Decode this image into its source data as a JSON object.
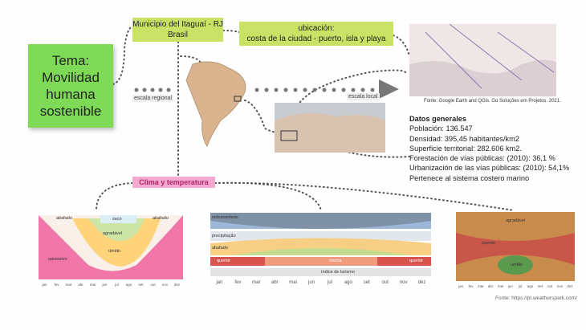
{
  "theme_note": "Tema: Movilidad humana sostenible",
  "location_label": "Municipio del Itaguaí - RJ Brasil",
  "ubicacion": {
    "title": "ubicación:",
    "text": "costa de la ciudad - puerto, isla y playa"
  },
  "scale_regional": "escala regional",
  "scale_local": "escala local",
  "map_source": "Fonte: Google Earth and QGis. Go Soluções em Projetos. 2021.",
  "general_data": {
    "title": "Datos generales",
    "items": [
      "Población: 136.547",
      "Densidad: 395,45 habitantes/km2",
      "Superficie territorial: 282.606 km2.",
      "Forestación de vías públicas: (2010): 36,1 %",
      "Urbanización de las vías públicas: (2010): 54,1%",
      "Pertenece al sistema costero marino"
    ]
  },
  "climate_label": "Clima y temperatura",
  "climate_source": "Fonte: https://pt.weatherspark.com/",
  "months": [
    "jan",
    "fev",
    "mar",
    "abr",
    "mai",
    "jun",
    "jul",
    "ago",
    "set",
    "out",
    "nov",
    "dez"
  ],
  "charts": [
    {
      "labels": [
        "abafado",
        "seco",
        "agradável",
        "úmido",
        "abafado",
        "opressivo"
      ]
    },
    {
      "labels": [
        "nebulosidade",
        "precipitação",
        "abafado",
        "quente",
        "morna",
        "quente",
        "índice de turismo"
      ]
    },
    {
      "labels": [
        "agradável",
        "úmido",
        "quente"
      ]
    }
  ]
}
